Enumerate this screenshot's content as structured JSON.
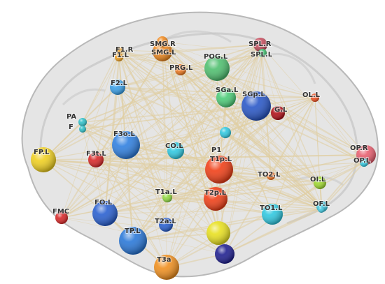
{
  "nodes": [
    {
      "id": "F1.R",
      "label": "F1.R",
      "color": "#f0a020"
    },
    {
      "id": "F1.L",
      "label": "F1.L",
      "color": "#f0a020"
    },
    {
      "id": "SMG.R",
      "label": "SMG.R",
      "color": "#f08a20"
    },
    {
      "id": "SMG.L",
      "label": "SMG.L",
      "color": "#f08a20"
    },
    {
      "id": "SPL.R",
      "label": "SPL.R",
      "color": "#c85060"
    },
    {
      "id": "SPL.L",
      "label": "SPL.L",
      "color": "#40c070"
    },
    {
      "id": "PRG.L",
      "label": "PRG.L",
      "color": "#f07a20"
    },
    {
      "id": "POG.L",
      "label": "POG.L",
      "color": "#50c070"
    },
    {
      "id": "F2.L",
      "label": "F2.L",
      "color": "#3aa0e8"
    },
    {
      "id": "SGa.L",
      "label": "SGa.L",
      "color": "#4ccc78"
    },
    {
      "id": "SGp.L",
      "label": "SGp.L",
      "color": "#2a58c8"
    },
    {
      "id": "AG.L",
      "label": "G.L",
      "color": "#b01018"
    },
    {
      "id": "OL.L",
      "label": "OL.L",
      "color": "#f05020"
    },
    {
      "id": "PAR",
      "label": "PA",
      "color": "#30c0c8"
    },
    {
      "id": "PAL",
      "label": "F",
      "color": "#30c0c8"
    },
    {
      "id": "F3o.L",
      "label": "F3o.L",
      "color": "#3080e0"
    },
    {
      "id": "CO.L",
      "label": "CO.L",
      "color": "#30c8e0"
    },
    {
      "id": "FP.L",
      "label": "FP.L",
      "color": "#f0d020"
    },
    {
      "id": "F3t.L",
      "label": "F3t.L",
      "color": "#d82828"
    },
    {
      "id": "P1.L",
      "label": "P1",
      "color": "#30c8e0"
    },
    {
      "id": "T1p.L",
      "label": "T1p.L",
      "color": "#f04018"
    },
    {
      "id": "TO2.L",
      "label": "TO2.L",
      "color": "#f07020"
    },
    {
      "id": "OP.R",
      "label": "OP.R",
      "color": "#e86070"
    },
    {
      "id": "OP.L",
      "label": "OP.L",
      "color": "#30c8e0"
    },
    {
      "id": "T1a.L",
      "label": "T1a.L",
      "color": "#90d840"
    },
    {
      "id": "T2p.L",
      "label": "T2p.L",
      "color": "#f04018"
    },
    {
      "id": "OI.L",
      "label": "OI.L",
      "color": "#a0d830"
    },
    {
      "id": "FMC",
      "label": "FMC",
      "color": "#d82828"
    },
    {
      "id": "FO.L",
      "label": "FO.L",
      "color": "#2a60d0"
    },
    {
      "id": "TO1.L",
      "label": "TO1.L",
      "color": "#30c8e0"
    },
    {
      "id": "OF.L",
      "label": "OF.L",
      "color": "#40c8e0"
    },
    {
      "id": "T2a.L",
      "label": "T2a.L",
      "color": "#2a60d0"
    },
    {
      "id": "TP.L",
      "label": "TP.L",
      "color": "#2a78d8"
    },
    {
      "id": "T3p.L",
      "label": "",
      "color": "#e8e020"
    },
    {
      "id": "T3p2.L",
      "label": "",
      "color": "#202090"
    },
    {
      "id": "T3a.L",
      "label": "T3a",
      "color": "#f09020"
    },
    {
      "id": "OF.R",
      "label": "",
      "color": "#40c8e0"
    }
  ],
  "colors": {
    "brain_fill": "#d8d8d8",
    "brain_stroke": "#bcbcbc",
    "edge": "#e0cda0",
    "label": "#333333"
  }
}
